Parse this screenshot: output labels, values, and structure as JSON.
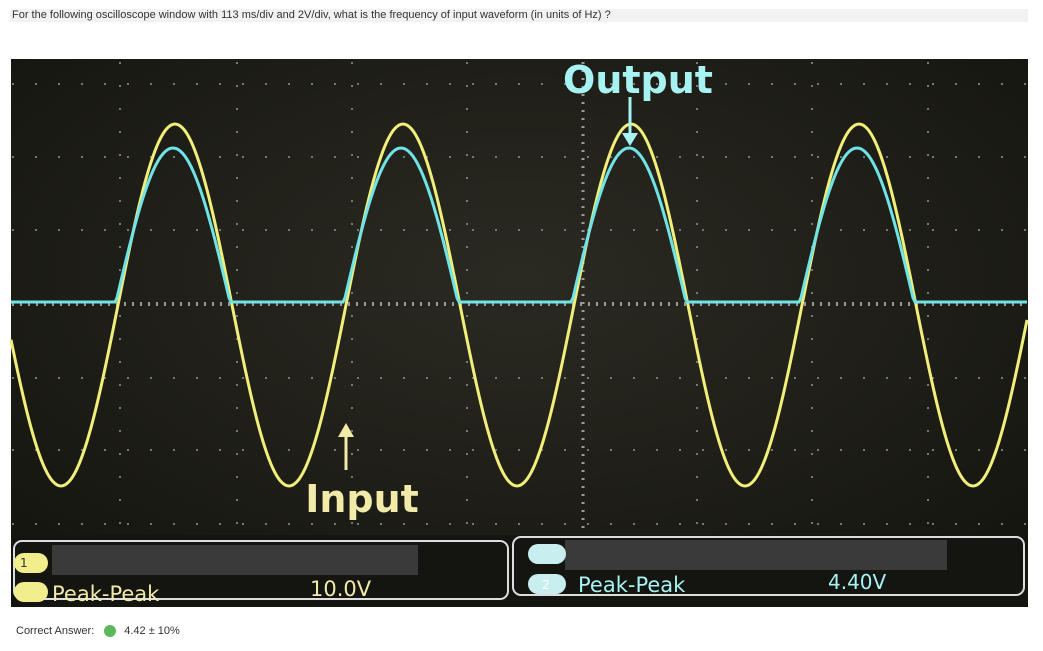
{
  "question": "For the following oscilloscope window with 113 ms/div and 2V/div, what is the frequency of input waveform (in units of Hz) ?",
  "scope": {
    "output_label": "Output",
    "input_label": "Input",
    "channel1": {
      "number": "1",
      "measure": "Peak-Peak",
      "reading": "10.0V"
    },
    "channel2": {
      "number": "2",
      "measure": "Peak-Peak",
      "reading": "4.40V"
    }
  },
  "answer": {
    "label": "Correct Answer:",
    "value": "4.42 ± 10%"
  }
}
